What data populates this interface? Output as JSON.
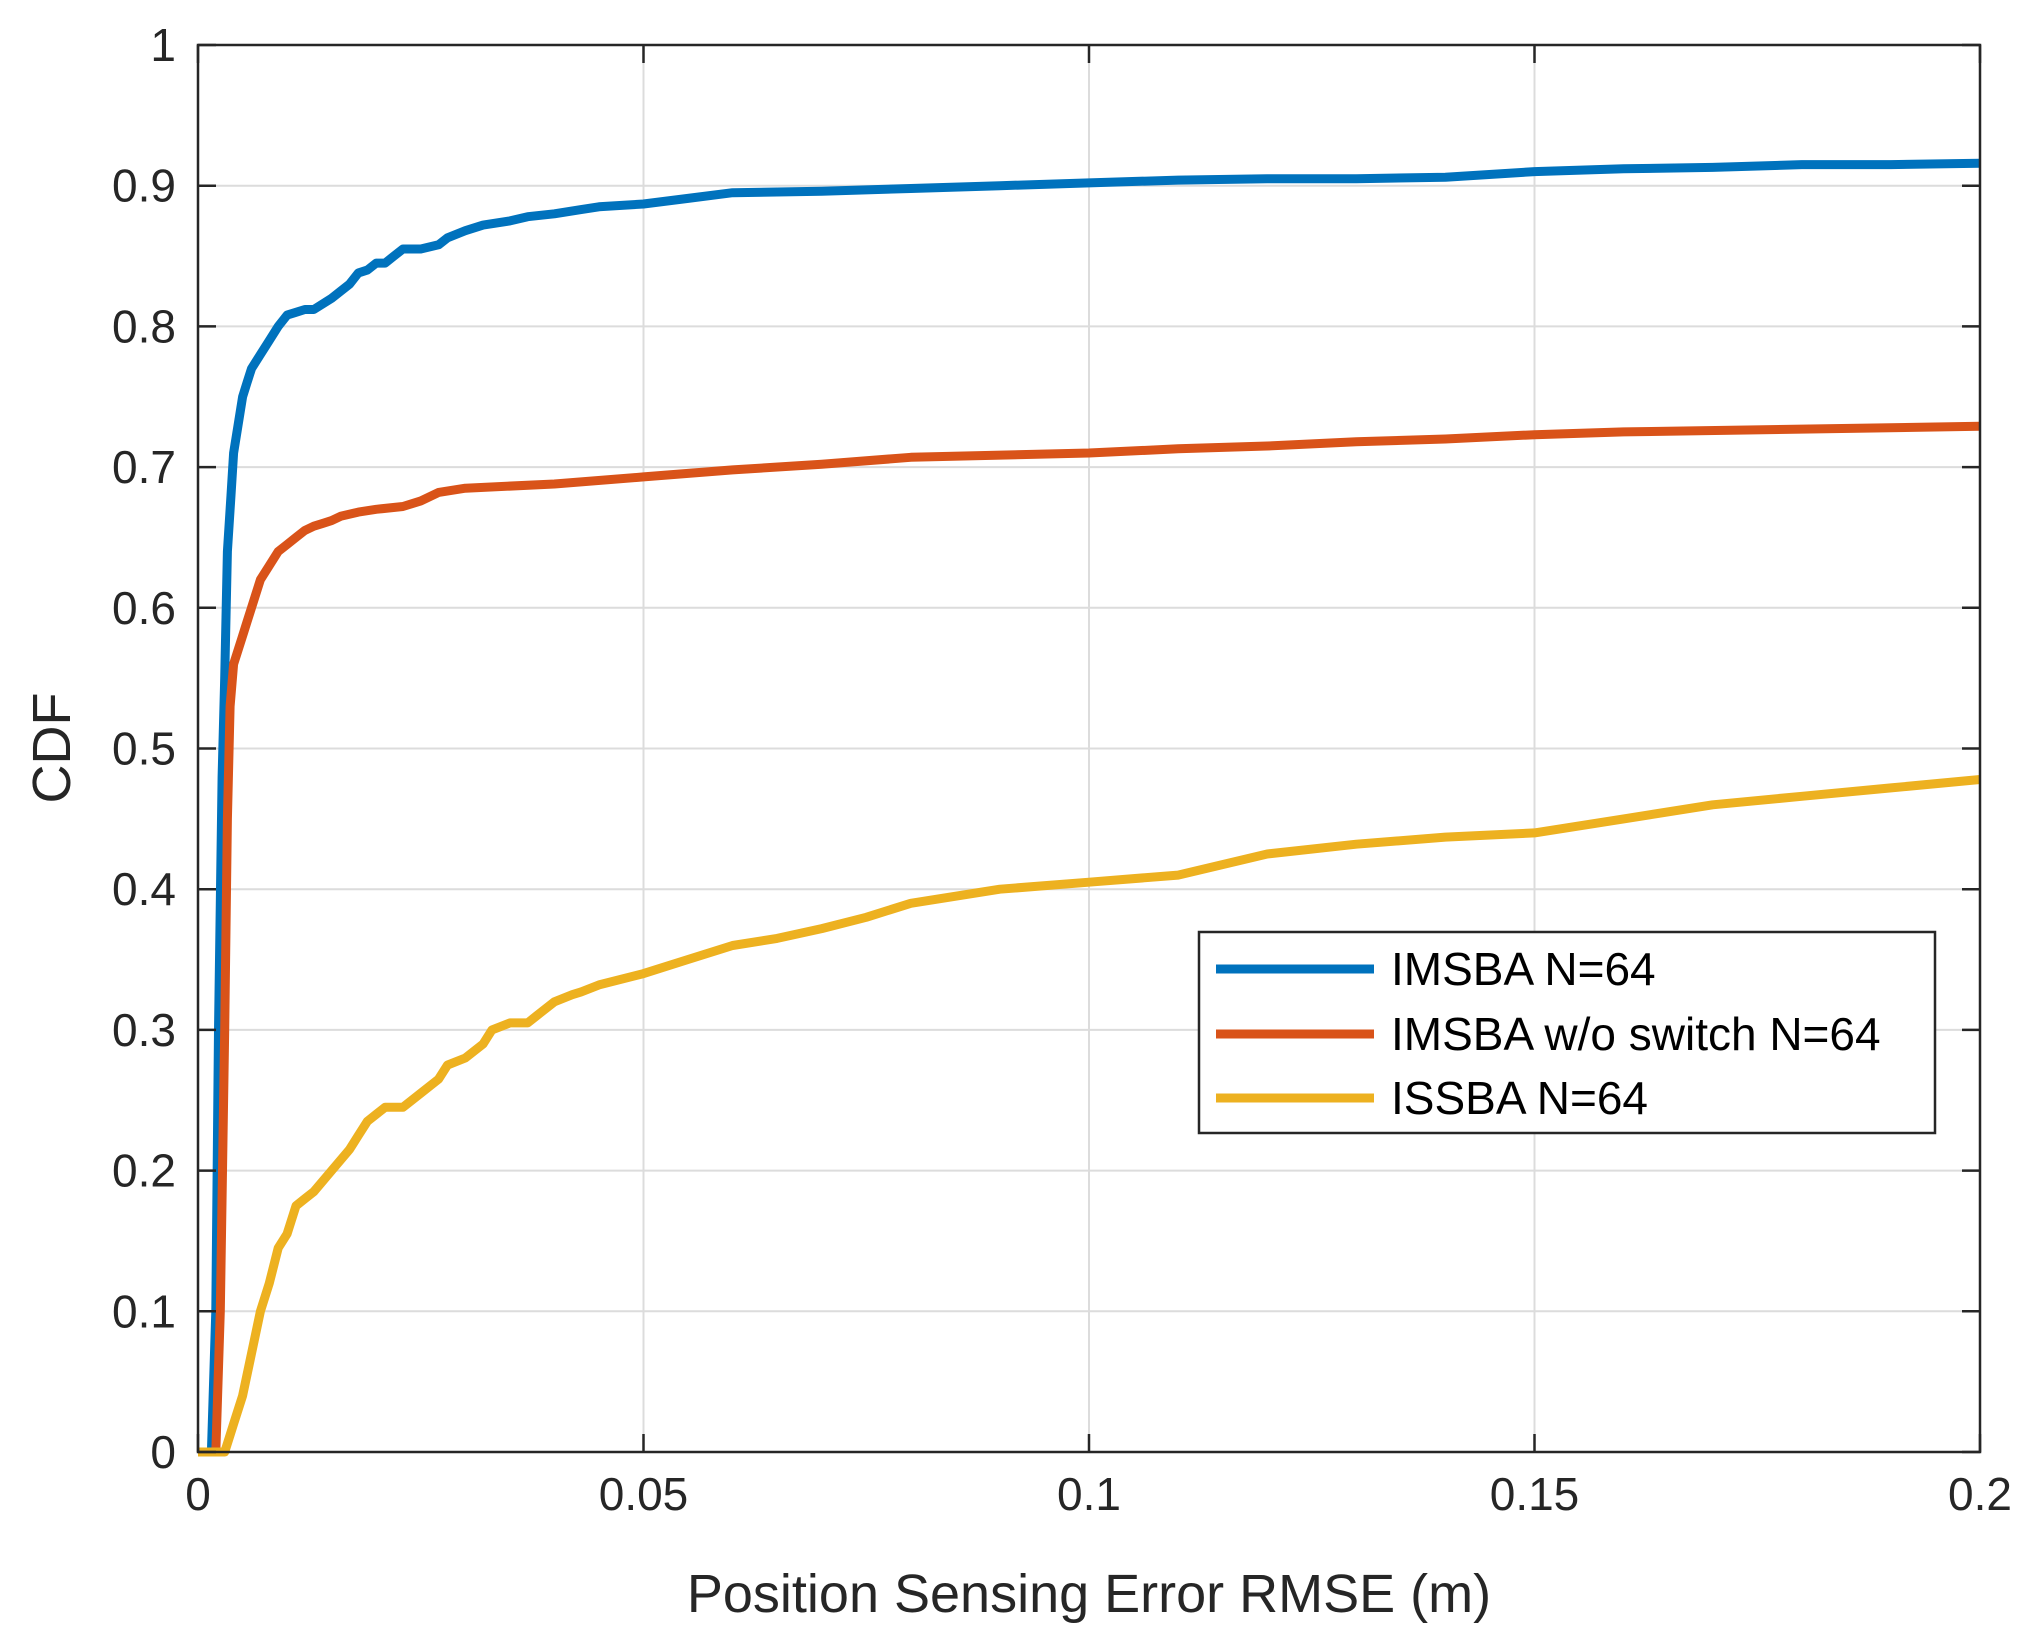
{
  "chart_data": {
    "type": "line",
    "title": "",
    "xlabel": "Position Sensing Error RMSE (m)",
    "ylabel": "CDF",
    "xlim": [
      0,
      0.2
    ],
    "ylim": [
      0,
      1
    ],
    "xticks": [
      0,
      0.05,
      0.1,
      0.15,
      0.2
    ],
    "xtick_labels": [
      "0",
      "0.05",
      "0.1",
      "0.15",
      "0.2"
    ],
    "yticks": [
      0,
      0.1,
      0.2,
      0.3,
      0.4,
      0.5,
      0.6,
      0.7,
      0.8,
      0.9,
      1
    ],
    "ytick_labels": [
      "0",
      "0.1",
      "0.2",
      "0.3",
      "0.4",
      "0.5",
      "0.6",
      "0.7",
      "0.8",
      "0.9",
      "1"
    ],
    "grid": true,
    "legend_position": "middle-right",
    "series": [
      {
        "name": "IMSBA N=64",
        "color": "#0072BD",
        "x": [
          0,
          0.0015,
          0.002,
          0.0023,
          0.0027,
          0.003,
          0.0033,
          0.0037,
          0.004,
          0.0045,
          0.005,
          0.0055,
          0.006,
          0.007,
          0.008,
          0.009,
          0.01,
          0.011,
          0.012,
          0.013,
          0.015,
          0.016,
          0.017,
          0.018,
          0.019,
          0.02,
          0.021,
          0.022,
          0.023,
          0.025,
          0.027,
          0.028,
          0.03,
          0.032,
          0.035,
          0.037,
          0.04,
          0.043,
          0.045,
          0.05,
          0.055,
          0.06,
          0.07,
          0.08,
          0.09,
          0.1,
          0.11,
          0.12,
          0.13,
          0.14,
          0.15,
          0.16,
          0.17,
          0.18,
          0.19,
          0.2
        ],
        "y": [
          0,
          0,
          0.1,
          0.3,
          0.48,
          0.55,
          0.64,
          0.68,
          0.71,
          0.73,
          0.75,
          0.76,
          0.77,
          0.78,
          0.79,
          0.8,
          0.808,
          0.81,
          0.812,
          0.812,
          0.82,
          0.825,
          0.83,
          0.838,
          0.84,
          0.845,
          0.845,
          0.85,
          0.855,
          0.855,
          0.858,
          0.863,
          0.868,
          0.872,
          0.875,
          0.878,
          0.88,
          0.883,
          0.885,
          0.887,
          0.891,
          0.895,
          0.896,
          0.898,
          0.9,
          0.902,
          0.904,
          0.905,
          0.905,
          0.906,
          0.91,
          0.912,
          0.913,
          0.915,
          0.915,
          0.916
        ]
      },
      {
        "name": "IMSBA w/o switch N=64",
        "color": "#D95319",
        "x": [
          0,
          0.002,
          0.0025,
          0.003,
          0.0033,
          0.0036,
          0.004,
          0.0045,
          0.005,
          0.0055,
          0.006,
          0.007,
          0.008,
          0.009,
          0.01,
          0.011,
          0.012,
          0.013,
          0.014,
          0.015,
          0.016,
          0.018,
          0.02,
          0.023,
          0.025,
          0.027,
          0.03,
          0.04,
          0.05,
          0.06,
          0.07,
          0.08,
          0.1,
          0.11,
          0.12,
          0.13,
          0.14,
          0.15,
          0.16,
          0.18,
          0.2
        ],
        "y": [
          0,
          0,
          0.1,
          0.3,
          0.45,
          0.53,
          0.56,
          0.57,
          0.58,
          0.59,
          0.6,
          0.62,
          0.63,
          0.64,
          0.645,
          0.65,
          0.655,
          0.658,
          0.66,
          0.662,
          0.665,
          0.668,
          0.67,
          0.672,
          0.676,
          0.682,
          0.685,
          0.688,
          0.693,
          0.698,
          0.702,
          0.707,
          0.71,
          0.713,
          0.715,
          0.718,
          0.72,
          0.723,
          0.725,
          0.727,
          0.729
        ]
      },
      {
        "name": "ISSBA N=64",
        "color": "#EDB120",
        "x": [
          0,
          0.002,
          0.003,
          0.0035,
          0.004,
          0.005,
          0.006,
          0.007,
          0.008,
          0.009,
          0.01,
          0.011,
          0.012,
          0.013,
          0.015,
          0.017,
          0.018,
          0.019,
          0.02,
          0.021,
          0.022,
          0.023,
          0.025,
          0.027,
          0.028,
          0.03,
          0.032,
          0.033,
          0.035,
          0.037,
          0.038,
          0.04,
          0.042,
          0.043,
          0.045,
          0.05,
          0.055,
          0.06,
          0.065,
          0.07,
          0.075,
          0.08,
          0.09,
          0.1,
          0.11,
          0.12,
          0.13,
          0.14,
          0.15,
          0.16,
          0.17,
          0.18,
          0.19,
          0.2
        ],
        "y": [
          0,
          0,
          0,
          0.01,
          0.02,
          0.04,
          0.07,
          0.1,
          0.12,
          0.145,
          0.155,
          0.175,
          0.18,
          0.185,
          0.2,
          0.215,
          0.225,
          0.235,
          0.24,
          0.245,
          0.245,
          0.245,
          0.255,
          0.265,
          0.275,
          0.28,
          0.29,
          0.3,
          0.305,
          0.305,
          0.31,
          0.32,
          0.325,
          0.327,
          0.332,
          0.34,
          0.35,
          0.36,
          0.365,
          0.372,
          0.38,
          0.39,
          0.4,
          0.405,
          0.41,
          0.425,
          0.432,
          0.437,
          0.44,
          0.45,
          0.46,
          0.466,
          0.472,
          0.478
        ]
      }
    ]
  }
}
